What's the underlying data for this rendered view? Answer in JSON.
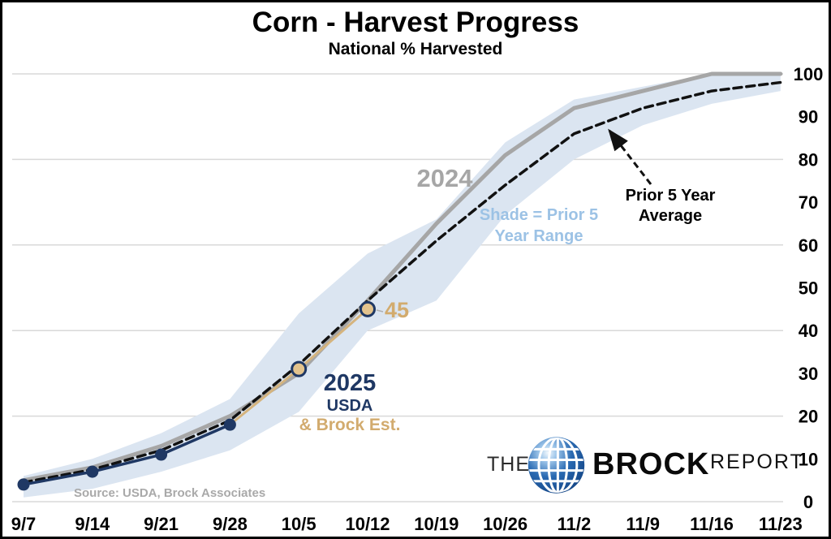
{
  "header": {
    "title": "Corn - Harvest Progress",
    "subtitle": "National % Harvested"
  },
  "source_text": "Source: USDA, Brock Associates",
  "logo": {
    "the": "THE",
    "brock": "BROCK",
    "report": "REPORT",
    "globe_color": "#1b5ca3"
  },
  "chart_data": {
    "type": "line",
    "title": "Corn - Harvest Progress",
    "subtitle": "National % Harvested",
    "categories": [
      "9/7",
      "9/14",
      "9/21",
      "9/28",
      "10/5",
      "10/12",
      "10/19",
      "10/26",
      "11/2",
      "11/9",
      "11/16",
      "11/23"
    ],
    "y_ticks": [
      0,
      10,
      20,
      30,
      40,
      50,
      60,
      70,
      80,
      90,
      100
    ],
    "grid_values": [
      0,
      20,
      40,
      60,
      80,
      100
    ],
    "ylim": [
      0,
      100
    ],
    "grid_color": "#d9d9d9",
    "legend_position": "annotated-inline",
    "range_band": {
      "label": "Prior 5 Year Range",
      "low": [
        1,
        3,
        7,
        12,
        21,
        40,
        47,
        67,
        80,
        88,
        93,
        96
      ],
      "high": [
        6,
        10,
        16,
        24,
        44,
        58,
        66,
        84,
        94,
        97,
        100,
        100
      ],
      "color": "#dbe5f1"
    },
    "series": [
      {
        "name": "2024",
        "start_index": 0,
        "values": [
          5,
          8,
          13,
          20,
          30,
          47,
          65,
          81,
          92,
          96,
          100,
          100
        ],
        "color": "#a6a6a6",
        "width": 5,
        "dash": null,
        "marker": null
      },
      {
        "name": "Prior 5 Year Average",
        "start_index": 0,
        "values": [
          4.5,
          7.5,
          12,
          19,
          32,
          47,
          61,
          74,
          86,
          92,
          96,
          98
        ],
        "color": "#111111",
        "width": 3.5,
        "dash": "10 6",
        "marker": null
      },
      {
        "name": "2025 Brock Est.",
        "start_index": 3,
        "values": [
          18,
          31,
          45
        ],
        "color": "#d5b47e",
        "width": 3,
        "dash": null,
        "marker": "tan",
        "marker_skip_first": true
      },
      {
        "name": "2025 USDA",
        "start_index": 0,
        "values": [
          4,
          7,
          11,
          18
        ],
        "color": "#1f3864",
        "width": 3.5,
        "dash": null,
        "marker": "navy"
      }
    ],
    "marker_styles": {
      "navy": {
        "r": 7.5,
        "fill": "#1f3864",
        "stroke": "none",
        "stroke_width": 0
      },
      "tan": {
        "r": 8.5,
        "fill": "#e3c38d",
        "stroke": "#1f3864",
        "stroke_width": 3
      }
    },
    "annotations": {
      "series_2024": "2024",
      "shade_line1": "Shade = Prior 5",
      "shade_line2": "Year Range",
      "prior_line1": "Prior 5 Year",
      "prior_line2": "Average",
      "point_45": "45",
      "est_2025": "2025",
      "est_usda": "USDA",
      "est_brock": "& Brock Est."
    }
  }
}
